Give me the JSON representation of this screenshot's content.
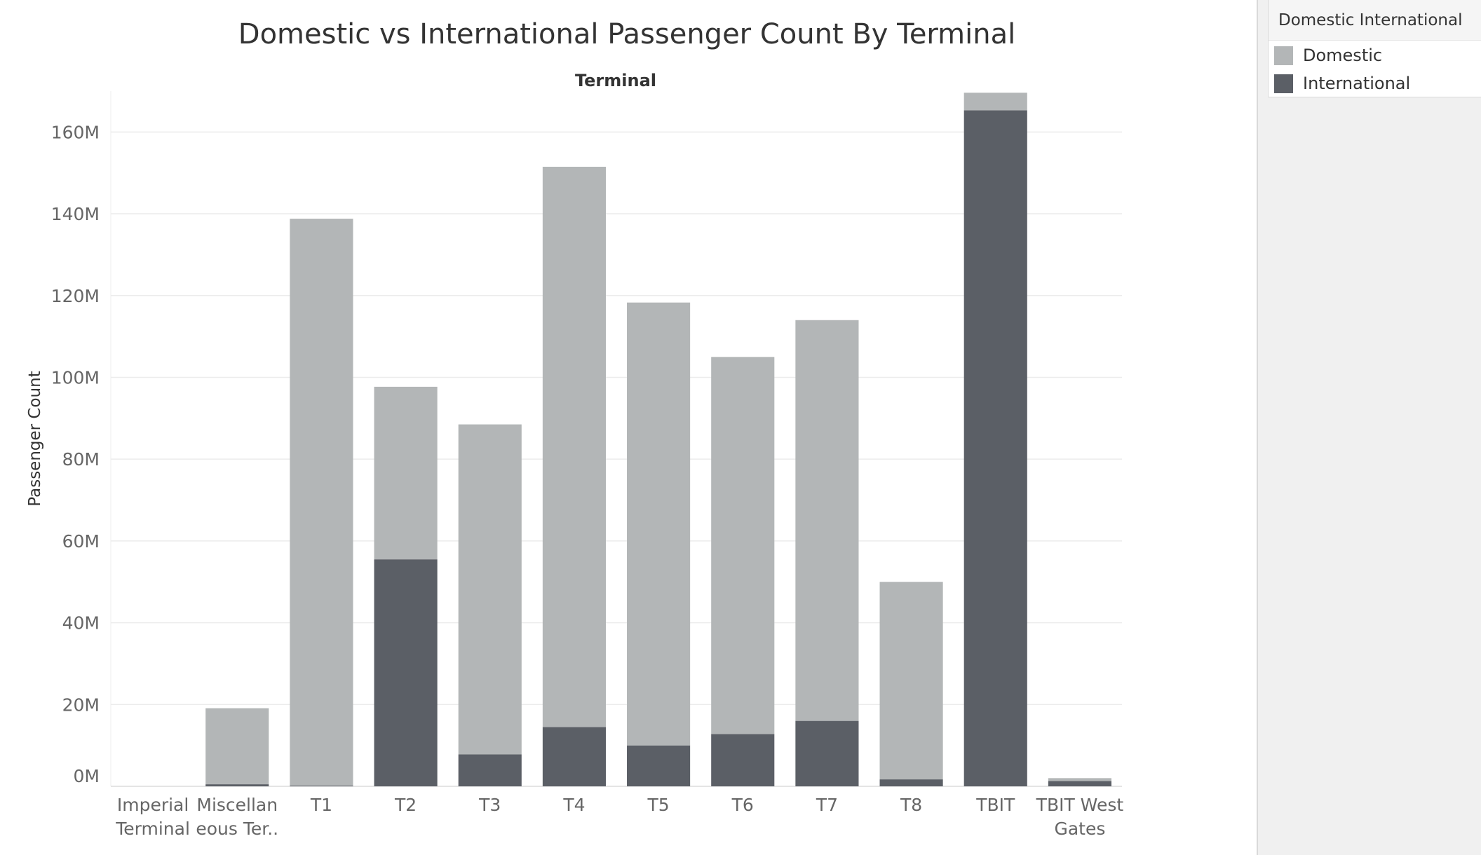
{
  "chart_data": {
    "type": "bar",
    "stacked": true,
    "title": "Domestic vs International Passenger Count By Terminal",
    "column_header": "Terminal",
    "ylabel": "Passenger Count",
    "xlabel": "",
    "ylim": [
      0,
      170000000
    ],
    "yticks": [
      0,
      20000000,
      40000000,
      60000000,
      80000000,
      100000000,
      120000000,
      140000000,
      160000000
    ],
    "ytick_labels": [
      "0M",
      "20M",
      "40M",
      "60M",
      "80M",
      "100M",
      "120M",
      "140M",
      "160M"
    ],
    "grid": true,
    "legend_position": "right",
    "categories": [
      [
        "Imperial",
        "Terminal"
      ],
      [
        "Miscellan",
        "eous Ter.."
      ],
      [
        "T1"
      ],
      [
        "T2"
      ],
      [
        "T3"
      ],
      [
        "T4"
      ],
      [
        "T5"
      ],
      [
        "T6"
      ],
      [
        "T7"
      ],
      [
        "T8"
      ],
      [
        "TBIT"
      ],
      [
        "TBIT West",
        "Gates"
      ]
    ],
    "series": [
      {
        "name": "International",
        "color": "#5b5f66",
        "values": [
          0,
          500000,
          200000,
          55500000,
          7800000,
          14500000,
          10000000,
          12800000,
          16000000,
          1700000,
          165300000,
          1300000
        ]
      },
      {
        "name": "Domestic",
        "color": "#b3b6b7",
        "values": [
          0,
          18600000,
          138600000,
          42200000,
          80700000,
          137000000,
          108300000,
          92200000,
          98000000,
          48300000,
          4300000,
          700000
        ]
      }
    ]
  },
  "legend": {
    "title": "Domestic International",
    "items": [
      {
        "label": "Domestic",
        "color": "#b3b6b7"
      },
      {
        "label": "International",
        "color": "#5b5f66"
      }
    ]
  }
}
